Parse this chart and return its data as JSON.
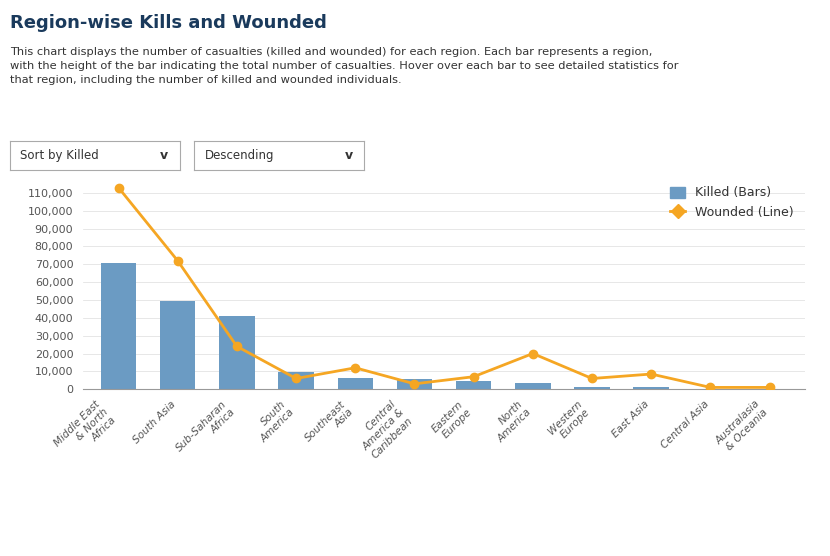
{
  "title": "Region-wise Kills and Wounded",
  "subtitle": "This chart displays the number of casualties (killed and wounded) for each region. Each bar represents a region,\nwith the height of the bar indicating the total number of casualties. Hover over each bar to see detailed statistics for\nthat region, including the number of killed and wounded individuals.",
  "filter_label1": "Sort by Killed",
  "filter_label2": "Descending",
  "categories": [
    "Middle East\n& North\nAfrica",
    "South Asia",
    "Sub-Saharan\nAfrica",
    "South\nAmerica",
    "Southeast\nAsia",
    "Central\nAmerica &\nCaribbean",
    "Eastern\nEurope",
    "North\nAmerica",
    "Western\nEurope",
    "East Asia",
    "Central Asia",
    "Australasia\n& Oceania"
  ],
  "killed": [
    71000,
    49500,
    41000,
    9500,
    6500,
    5500,
    4500,
    3500,
    1500,
    1000,
    300,
    200
  ],
  "wounded": [
    113000,
    72000,
    24000,
    6000,
    12000,
    3000,
    7000,
    20000,
    6000,
    8500,
    1000,
    1000
  ],
  "bar_color": "#6b9bc3",
  "line_color": "#f5a623",
  "line_marker": "o",
  "background_color": "#ffffff",
  "ylim": [
    0,
    120000
  ],
  "yticks": [
    0,
    10000,
    20000,
    30000,
    40000,
    50000,
    60000,
    70000,
    80000,
    90000,
    100000,
    110000
  ],
  "legend_killed_label": "Killed (Bars)",
  "legend_wounded_label": "Wounded (Line)",
  "legend_killed_color": "#6b9bc3",
  "legend_wounded_color": "#f5a623",
  "title_color": "#1a3a5c",
  "subtitle_color": "#333333",
  "axis_color": "#333333",
  "tick_label_color": "#555555",
  "grid_color": "#dddddd",
  "label_rotation": 45
}
